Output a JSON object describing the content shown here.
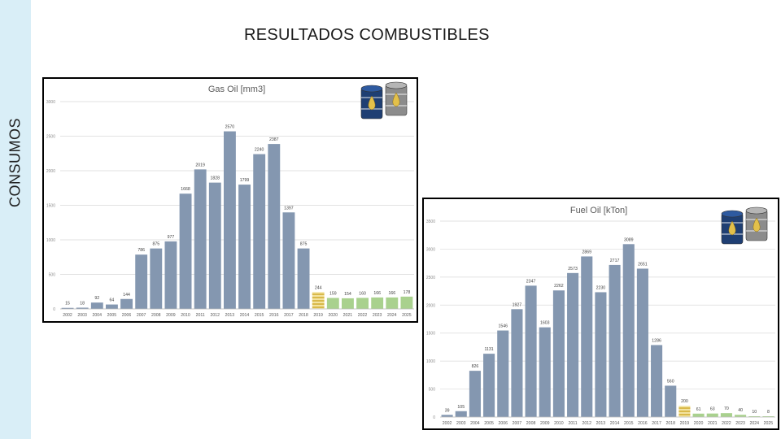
{
  "side_label": "CONSUMOS",
  "page_title": "RESULTADOS COMBUSTIBLES",
  "colors": {
    "bar": "#8497b0",
    "projection": "#a9d18e",
    "striped": "#d9b94a",
    "grid": "#d9d9d9",
    "side_band": "#d9eef7"
  },
  "icons": [
    "blue-oil-drum-icon",
    "gray-oil-drum-icon"
  ],
  "chart_data": [
    {
      "type": "bar",
      "title": "Gas Oil [mm3]",
      "ylim": [
        0,
        3000
      ],
      "yticks": [
        "0",
        "500",
        "1000",
        "1500",
        "2000",
        "2500",
        "3000"
      ],
      "grid": true,
      "categories": [
        "2002",
        "2003",
        "2004",
        "2005",
        "2006",
        "2007",
        "2008",
        "2009",
        "2010",
        "2011",
        "2012",
        "2013",
        "2014",
        "2015",
        "2016",
        "2017",
        "2018",
        "2019",
        "2020",
        "2021",
        "2022",
        "2023",
        "2024",
        "2025"
      ],
      "values": [
        15,
        18,
        92,
        64,
        144,
        786,
        875,
        977,
        1668,
        2019,
        1828,
        2570,
        1799,
        2240,
        2387,
        1397,
        875,
        244,
        159,
        154,
        160,
        166,
        166,
        178
      ],
      "labels": [
        "15",
        "18",
        "92",
        "64",
        "144",
        "786",
        "875",
        "977",
        "1668",
        "2019",
        "1828",
        "2570",
        "1799",
        "2240",
        "2387",
        "1397",
        "875",
        "244",
        "159",
        "154",
        "160",
        "166",
        "166",
        "178"
      ],
      "bar_kinds": [
        "actual",
        "actual",
        "actual",
        "actual",
        "actual",
        "actual",
        "actual",
        "actual",
        "actual",
        "actual",
        "actual",
        "actual",
        "actual",
        "actual",
        "actual",
        "actual",
        "actual",
        "striped",
        "projection",
        "projection",
        "projection",
        "projection",
        "projection",
        "projection"
      ]
    },
    {
      "type": "bar",
      "title": "Fuel Oil [kTon]",
      "ylim": [
        0,
        3500
      ],
      "yticks": [
        "0",
        "500",
        "1000",
        "1500",
        "2000",
        "2500",
        "3000",
        "3500"
      ],
      "grid": true,
      "categories": [
        "2002",
        "2003",
        "2004",
        "2005",
        "2006",
        "2007",
        "2008",
        "2009",
        "2010",
        "2011",
        "2012",
        "2013",
        "2014",
        "2015",
        "2016",
        "2017",
        "2018",
        "2019",
        "2020",
        "2021",
        "2022",
        "2023",
        "2024",
        "2025"
      ],
      "values": [
        39,
        105,
        826,
        1131,
        1546,
        1927,
        2347,
        1603,
        2262,
        2573,
        2869,
        2230,
        2717,
        3089,
        2651,
        1286,
        560,
        200,
        61,
        63,
        70,
        40,
        10,
        8
      ],
      "labels": [
        "39",
        "105",
        "826",
        "1131",
        "1546",
        "1927",
        "2347",
        "1603",
        "2262",
        "2573",
        "2869",
        "2230",
        "2717",
        "3089",
        "2651",
        "1286",
        "560",
        "200",
        "61",
        "63",
        "70",
        "40",
        "10",
        "8"
      ],
      "bar_kinds": [
        "actual",
        "actual",
        "actual",
        "actual",
        "actual",
        "actual",
        "actual",
        "actual",
        "actual",
        "actual",
        "actual",
        "actual",
        "actual",
        "actual",
        "actual",
        "actual",
        "actual",
        "striped",
        "projection",
        "projection",
        "projection",
        "projection",
        "projection",
        "projection"
      ]
    }
  ]
}
